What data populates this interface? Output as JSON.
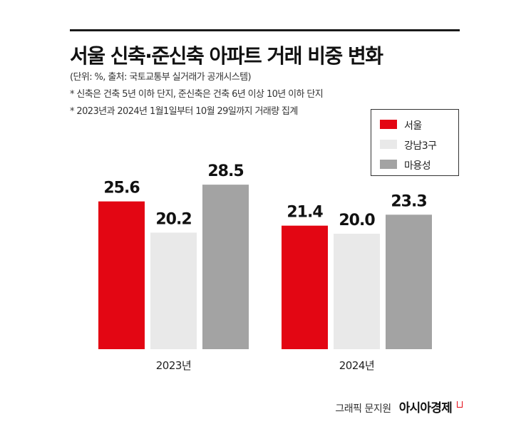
{
  "title": "서울 신축·준신축 아파트 거래 비중 변화",
  "notes": [
    "(단위: %, 출처: 국토교통부 실거래가 공개시스템)",
    "* 신축은 건축 5년 이하 단지, 준신축은 건축 6년 이상 10년 이하 단지",
    "* 2023년과 2024년 1월1일부터 10월 29일까지 거래량 집계"
  ],
  "footer": {
    "credit": "그래픽 문지원",
    "brand": "아시아경제"
  },
  "chart_data": {
    "type": "bar",
    "categories": [
      "2023년",
      "2024년"
    ],
    "series": [
      {
        "name": "서울",
        "color": "#e30613",
        "values": [
          25.6,
          21.4
        ]
      },
      {
        "name": "강남3구",
        "color": "#e9e9e9",
        "values": [
          20.2,
          20.0
        ]
      },
      {
        "name": "마용성",
        "color": "#a3a3a3",
        "values": [
          28.5,
          23.3
        ]
      }
    ],
    "value_labels": [
      [
        "25.6",
        "21.4"
      ],
      [
        "20.2",
        "20.0"
      ],
      [
        "28.5",
        "23.3"
      ]
    ],
    "legend_position": "top-right",
    "grid": false
  }
}
